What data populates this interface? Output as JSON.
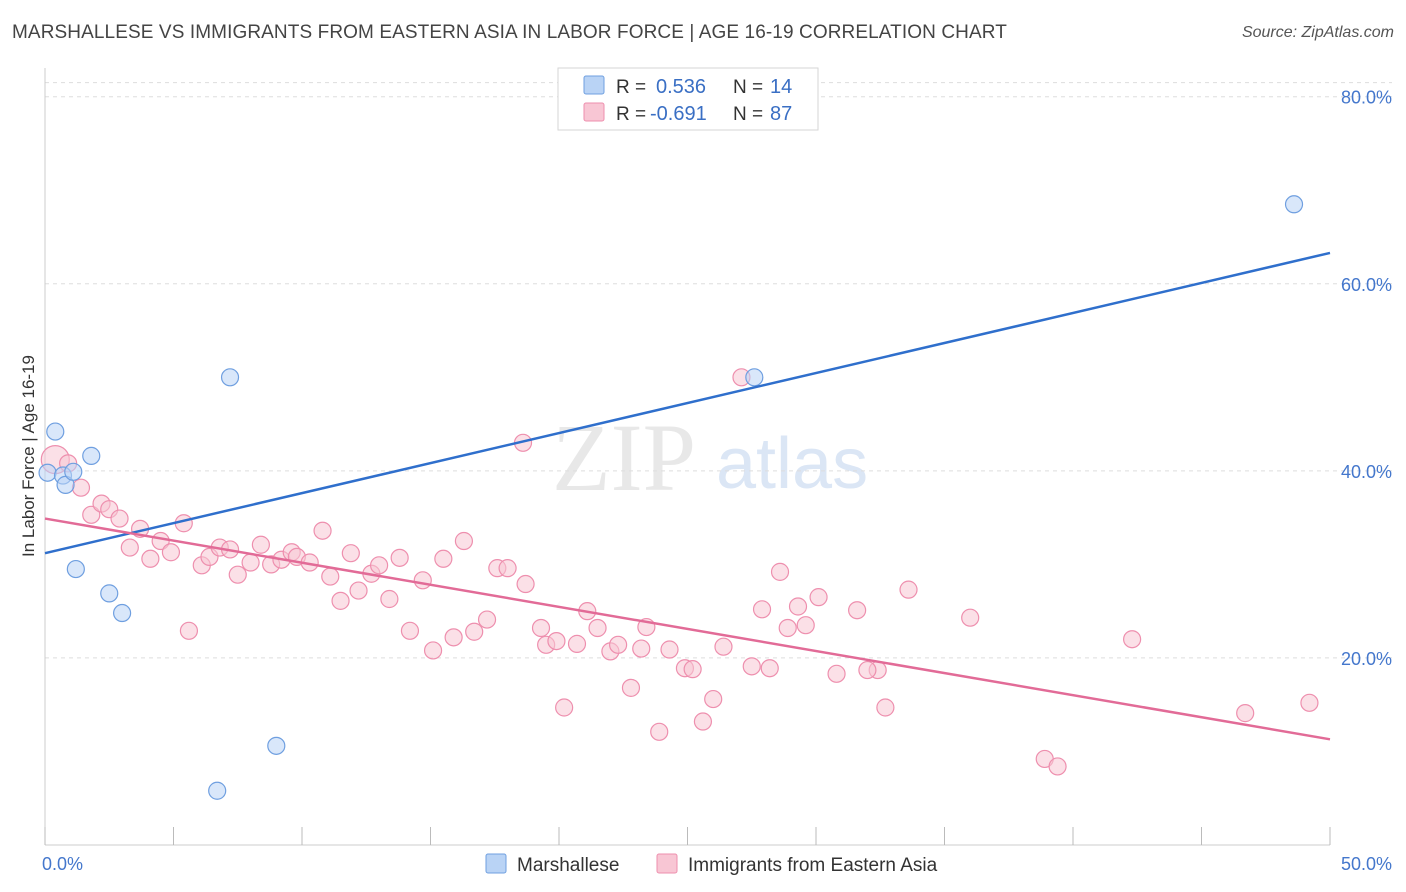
{
  "title": "MARSHALLESE VS IMMIGRANTS FROM EASTERN ASIA IN LABOR FORCE | AGE 16-19 CORRELATION CHART",
  "source": "Source: ZipAtlas.com",
  "watermark": {
    "zip": "ZIP",
    "atlas": "atlas"
  },
  "colors": {
    "marshallese_fill": "#b9d3f5",
    "marshallese_stroke": "#6f9fe0",
    "marshallese_line": "#2f6fcc",
    "eastasia_fill": "#f8c6d4",
    "eastasia_stroke": "#ee8fae",
    "eastasia_line": "#e26b97",
    "grid": "#dddddd",
    "axis_text": "#4477cc"
  },
  "legend": {
    "rows": [
      {
        "r_label": "R =",
        "r_value": "0.536",
        "n_label": "N =",
        "n_value": "14"
      },
      {
        "r_label": "R =",
        "r_value": "-0.691",
        "n_label": "N =",
        "n_value": "87"
      }
    ]
  },
  "bottom_legend": [
    "Marshallese",
    "Immigrants from Eastern Asia"
  ],
  "chart_data": {
    "type": "scatter",
    "xlabel": "",
    "ylabel": "In Labor Force | Age 16-19",
    "xlim": [
      0,
      50
    ],
    "ylim": [
      0,
      82
    ],
    "x_tick_labels": [
      "0.0%",
      "50.0%"
    ],
    "y_ticks": [
      20,
      40,
      60,
      80
    ],
    "y_tick_labels": [
      "20.0%",
      "40.0%",
      "60.0%",
      "80.0%"
    ],
    "grid": true,
    "series": [
      {
        "name": "Marshallese",
        "points": [
          [
            0.1,
            39.8
          ],
          [
            0.4,
            44.2
          ],
          [
            0.7,
            39.5
          ],
          [
            0.8,
            38.5
          ],
          [
            1.1,
            39.9
          ],
          [
            1.8,
            41.6
          ],
          [
            1.2,
            29.5
          ],
          [
            2.5,
            26.9
          ],
          [
            3.0,
            24.8
          ],
          [
            7.2,
            50.0
          ],
          [
            9.0,
            10.6
          ],
          [
            6.7,
            5.8
          ],
          [
            27.6,
            50.0
          ],
          [
            48.6,
            68.5
          ]
        ],
        "trend": [
          [
            0,
            31.2
          ],
          [
            50,
            63.3
          ]
        ]
      },
      {
        "name": "Immigrants from Eastern Asia",
        "points": [
          [
            0.4,
            41.2
          ],
          [
            0.9,
            40.8
          ],
          [
            1.4,
            38.2
          ],
          [
            1.8,
            35.3
          ],
          [
            2.2,
            36.5
          ],
          [
            2.5,
            35.9
          ],
          [
            2.9,
            34.9
          ],
          [
            3.3,
            31.8
          ],
          [
            3.7,
            33.8
          ],
          [
            4.1,
            30.6
          ],
          [
            4.5,
            32.5
          ],
          [
            4.9,
            31.3
          ],
          [
            5.4,
            34.4
          ],
          [
            5.6,
            22.9
          ],
          [
            6.1,
            29.9
          ],
          [
            6.4,
            30.8
          ],
          [
            6.8,
            31.8
          ],
          [
            7.2,
            31.6
          ],
          [
            7.5,
            28.9
          ],
          [
            8.0,
            30.2
          ],
          [
            8.4,
            32.1
          ],
          [
            8.8,
            30.0
          ],
          [
            9.2,
            30.5
          ],
          [
            9.6,
            31.3
          ],
          [
            9.8,
            30.8
          ],
          [
            10.3,
            30.2
          ],
          [
            10.8,
            33.6
          ],
          [
            11.1,
            28.7
          ],
          [
            11.5,
            26.1
          ],
          [
            11.9,
            31.2
          ],
          [
            12.2,
            27.2
          ],
          [
            12.7,
            29.0
          ],
          [
            13.0,
            29.9
          ],
          [
            13.4,
            26.3
          ],
          [
            13.8,
            30.7
          ],
          [
            14.2,
            22.9
          ],
          [
            14.7,
            28.3
          ],
          [
            15.1,
            20.8
          ],
          [
            15.5,
            30.6
          ],
          [
            15.9,
            22.2
          ],
          [
            16.3,
            32.5
          ],
          [
            16.7,
            22.8
          ],
          [
            17.2,
            24.1
          ],
          [
            17.6,
            29.6
          ],
          [
            18.0,
            29.6
          ],
          [
            18.6,
            43.0
          ],
          [
            18.7,
            27.9
          ],
          [
            19.3,
            23.2
          ],
          [
            19.5,
            21.4
          ],
          [
            19.9,
            21.8
          ],
          [
            20.2,
            14.7
          ],
          [
            20.7,
            21.5
          ],
          [
            21.1,
            25.0
          ],
          [
            21.5,
            23.2
          ],
          [
            22.0,
            20.7
          ],
          [
            22.3,
            21.4
          ],
          [
            22.8,
            16.8
          ],
          [
            23.2,
            21.0
          ],
          [
            23.4,
            23.3
          ],
          [
            23.9,
            12.1
          ],
          [
            24.3,
            20.9
          ],
          [
            24.9,
            18.9
          ],
          [
            25.2,
            18.8
          ],
          [
            25.6,
            13.2
          ],
          [
            26.0,
            15.6
          ],
          [
            26.4,
            21.2
          ],
          [
            27.1,
            50.0
          ],
          [
            27.5,
            19.1
          ],
          [
            27.9,
            25.2
          ],
          [
            28.2,
            18.9
          ],
          [
            28.6,
            29.2
          ],
          [
            28.9,
            23.2
          ],
          [
            29.3,
            25.5
          ],
          [
            29.6,
            23.5
          ],
          [
            30.1,
            26.5
          ],
          [
            30.8,
            18.3
          ],
          [
            31.6,
            25.1
          ],
          [
            32.4,
            18.7
          ],
          [
            32.7,
            14.7
          ],
          [
            33.6,
            27.3
          ],
          [
            36.0,
            24.3
          ],
          [
            38.9,
            9.2
          ],
          [
            39.4,
            8.4
          ],
          [
            42.3,
            22.0
          ],
          [
            46.7,
            14.1
          ],
          [
            49.2,
            15.2
          ],
          [
            32.0,
            18.7
          ]
        ],
        "trend": [
          [
            0,
            34.9
          ],
          [
            50,
            11.3
          ]
        ]
      }
    ]
  }
}
